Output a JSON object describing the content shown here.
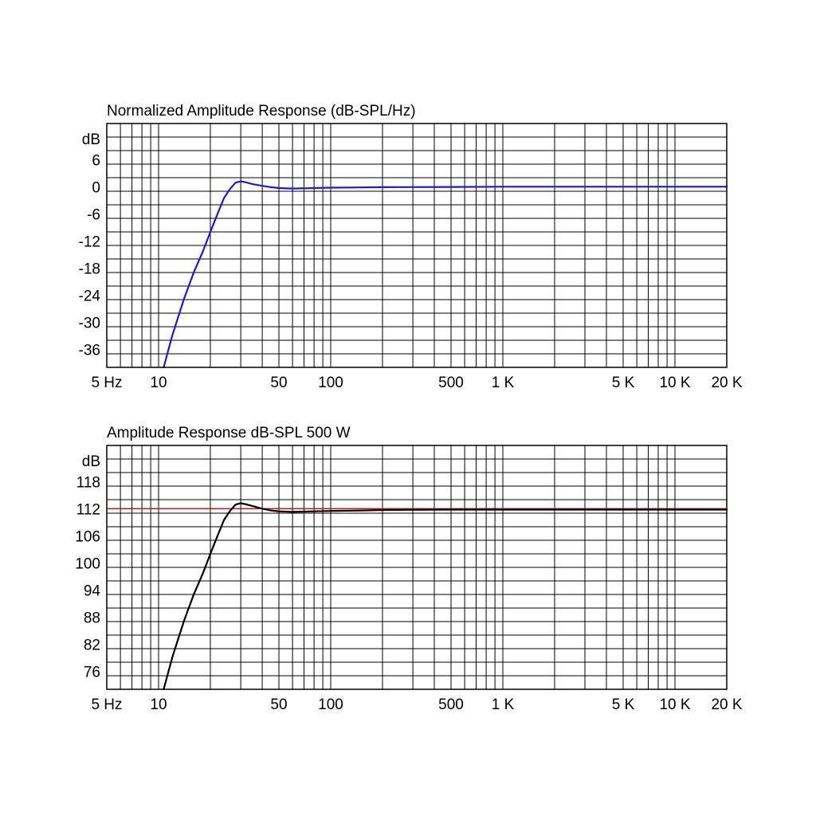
{
  "chart_data": [
    {
      "type": "line",
      "title": "Normalized Amplitude Response (dB-SPL/Hz)",
      "ylabel": "dB",
      "x_scale": "log",
      "xlim": [
        5,
        20000
      ],
      "ylim": [
        -40,
        14
      ],
      "grid": true,
      "y_ticks": [
        6,
        0,
        -6,
        -12,
        -18,
        -24,
        -30,
        -36
      ],
      "y_tick_labels": [
        "6",
        "0",
        "-6",
        "-12",
        "-18",
        "-24",
        "-30",
        "-36"
      ],
      "x_tick_labels": [
        {
          "x": 5,
          "label": "5 Hz"
        },
        {
          "x": 10,
          "label": "10"
        },
        {
          "x": 50,
          "label": "50"
        },
        {
          "x": 100,
          "label": "100"
        },
        {
          "x": 500,
          "label": "500"
        },
        {
          "x": 1000,
          "label": "1 K"
        },
        {
          "x": 5000,
          "label": "5 K"
        },
        {
          "x": 10000,
          "label": "10 K"
        },
        {
          "x": 20000,
          "label": "20 K"
        }
      ],
      "series": [
        {
          "color": "#1a1adc",
          "x": [
            10.7,
            12,
            14,
            16,
            18,
            20,
            22,
            24,
            26,
            28,
            30,
            32,
            35,
            40,
            45,
            50,
            60,
            80,
            100,
            150,
            200,
            500,
            1000,
            5000,
            10000,
            20000
          ],
          "y": [
            -40,
            -33,
            -25,
            -19,
            -14.5,
            -10,
            -6,
            -2.5,
            -0.5,
            0.9,
            1.2,
            1.0,
            0.6,
            0.2,
            -0.1,
            -0.3,
            -0.4,
            -0.3,
            -0.2,
            -0.15,
            -0.1,
            -0.05,
            0,
            0,
            0,
            0
          ]
        }
      ]
    },
    {
      "type": "line",
      "title": "Amplitude Response dB-SPL   500 W",
      "ylabel": "dB",
      "x_scale": "log",
      "xlim": [
        5,
        20000
      ],
      "ylim": [
        72,
        126
      ],
      "grid": true,
      "reference_line": {
        "y": 112,
        "color": "#e00000"
      },
      "y_ticks": [
        118,
        112,
        106,
        100,
        94,
        88,
        82,
        76
      ],
      "y_tick_labels": [
        "118",
        "112",
        "106",
        "100",
        "94",
        "88",
        "82",
        "76"
      ],
      "x_tick_labels": [
        {
          "x": 5,
          "label": "5 Hz"
        },
        {
          "x": 10,
          "label": "10"
        },
        {
          "x": 50,
          "label": "50"
        },
        {
          "x": 100,
          "label": "100"
        },
        {
          "x": 500,
          "label": "500"
        },
        {
          "x": 1000,
          "label": "1 K"
        },
        {
          "x": 5000,
          "label": "5 K"
        },
        {
          "x": 10000,
          "label": "10 K"
        },
        {
          "x": 20000,
          "label": "20 K"
        }
      ],
      "series": [
        {
          "color": "#000000",
          "x": [
            10.7,
            12,
            14,
            16,
            18,
            20,
            22,
            24,
            26,
            28,
            30,
            32,
            35,
            40,
            45,
            50,
            60,
            80,
            100,
            150,
            200,
            500,
            1000,
            5000,
            10000,
            20000
          ],
          "y": [
            72,
            79,
            87,
            93,
            97.5,
            102,
            106,
            109.5,
            111.5,
            112.9,
            113.2,
            113.0,
            112.6,
            112.0,
            111.6,
            111.4,
            111.3,
            111.4,
            111.5,
            111.6,
            111.7,
            111.8,
            111.8,
            111.8,
            111.8,
            111.8
          ]
        }
      ]
    }
  ]
}
